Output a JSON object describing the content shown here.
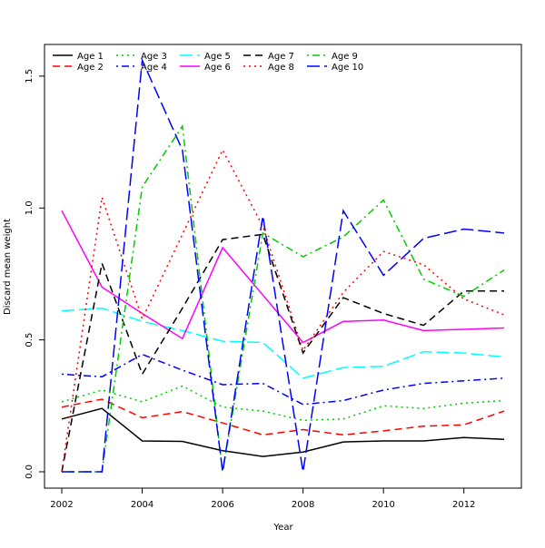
{
  "chart_data": {
    "type": "line",
    "title": "",
    "xlabel": "Year",
    "ylabel": "Discard mean weight",
    "x": [
      2002,
      2003,
      2004,
      2005,
      2006,
      2007,
      2008,
      2009,
      2010,
      2011,
      2012,
      2013
    ],
    "xlim": [
      2001.57,
      2013.43
    ],
    "ylim": [
      -0.062,
      1.62
    ],
    "xticks": [
      2002,
      2004,
      2006,
      2008,
      2010,
      2012
    ],
    "xtick_labels": [
      "2002",
      "2004",
      "2006",
      "2008",
      "2010",
      "2012"
    ],
    "yticks": [
      0,
      0.5,
      1,
      1.5
    ],
    "ytick_labels": [
      "0.0",
      "0.5",
      "1.0",
      "1.5"
    ],
    "legend_position": "top-left",
    "grid": false,
    "series": [
      {
        "name": "Age 1",
        "color": "#000000",
        "dash": "",
        "values": [
          0.2,
          0.24,
          0.117,
          0.115,
          0.08,
          0.058,
          0.075,
          0.113,
          0.117,
          0.117,
          0.13,
          0.123
        ]
      },
      {
        "name": "Age 2",
        "color": "#ff0000",
        "dash": "8,5",
        "values": [
          0.245,
          0.275,
          0.205,
          0.228,
          0.185,
          0.14,
          0.16,
          0.14,
          0.155,
          0.173,
          0.178,
          0.23
        ]
      },
      {
        "name": "Age 3",
        "color": "#00cd00",
        "dash": "2,4",
        "values": [
          0.265,
          0.31,
          0.265,
          0.325,
          0.245,
          0.23,
          0.195,
          0.2,
          0.25,
          0.24,
          0.26,
          0.27
        ]
      },
      {
        "name": "Age 4",
        "color": "#0000ff",
        "dash": "2,4,8,4",
        "values": [
          0.37,
          0.36,
          0.445,
          0.385,
          0.33,
          0.335,
          0.255,
          0.27,
          0.31,
          0.335,
          0.345,
          0.355
        ]
      },
      {
        "name": "Age 5",
        "color": "#00ffff",
        "dash": "14,5",
        "values": [
          0.61,
          0.62,
          0.57,
          0.535,
          0.495,
          0.49,
          0.355,
          0.395,
          0.4,
          0.455,
          0.45,
          0.435
        ]
      },
      {
        "name": "Age 6",
        "color": "#ff00ff",
        "dash": "",
        "values": [
          0.99,
          0.7,
          0.6,
          0.505,
          0.85,
          0.67,
          0.49,
          0.57,
          0.575,
          0.535,
          0.54,
          0.545
        ]
      },
      {
        "name": "Age 7",
        "color": "#000000",
        "dash": "8,5",
        "values": [
          0,
          0.79,
          0.37,
          0.62,
          0.88,
          0.9,
          0.45,
          0.66,
          0.6,
          0.555,
          0.685,
          0.685
        ]
      },
      {
        "name": "Age 8",
        "color": "#ff0000",
        "dash": "2,4",
        "values": [
          0,
          1.04,
          0.58,
          0.9,
          1.22,
          0.93,
          0.46,
          0.68,
          0.835,
          0.785,
          0.655,
          0.595
        ]
      },
      {
        "name": "Age 9",
        "color": "#00cd00",
        "dash": "2,4,8,4",
        "values": [
          0,
          0,
          1.08,
          1.31,
          0,
          0.905,
          0.815,
          0.89,
          1.03,
          0.73,
          0.665,
          0.765
        ]
      },
      {
        "name": "Age 10",
        "color": "#0000ff",
        "dash": "14,5",
        "values": [
          0,
          0,
          1.56,
          1.22,
          0,
          0.97,
          0,
          0.99,
          0.745,
          0.885,
          0.92,
          0.905
        ]
      }
    ]
  }
}
